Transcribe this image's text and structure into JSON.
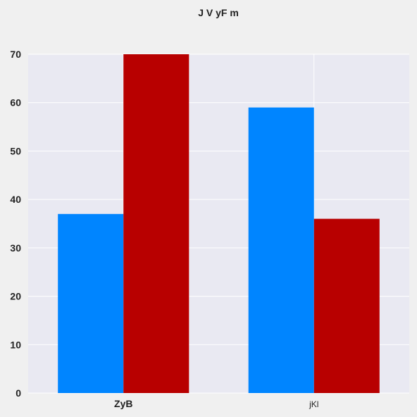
{
  "chart_data": {
    "type": "bar",
    "title": "J V yF m",
    "xlabel": "",
    "ylabel": "",
    "categories": [
      "ZyB",
      "jKl"
    ],
    "series": [
      {
        "values": [
          37,
          59
        ]
      },
      {
        "values": [
          70,
          36
        ]
      }
    ],
    "ylim": [
      0,
      70
    ],
    "yticks": [
      "0",
      "10",
      "20",
      "30",
      "40",
      "50",
      "60",
      "70"
    ],
    "grid": true,
    "colors": {
      "series": [
        "#0085ff",
        "#b80000"
      ],
      "plot_background": "#e9e9f2",
      "grid": "#ffffff",
      "page_background": "#f0f0f0"
    }
  }
}
